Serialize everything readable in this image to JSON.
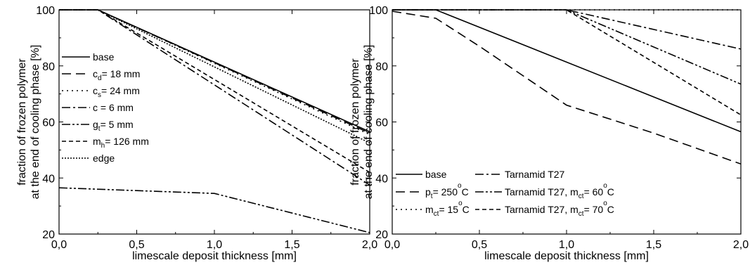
{
  "chart_data": [
    {
      "type": "line",
      "xlabel": "limescale deposit thickness [mm]",
      "ylabel_lines": [
        "fraction of frozen polymer",
        "at the end of cooling phase [%]"
      ],
      "xlim": [
        0,
        2
      ],
      "ylim": [
        20,
        100
      ],
      "xticks": [
        "0,0",
        "0,5",
        "1,0",
        "1,5",
        "2,0"
      ],
      "yticks": [
        "20",
        "40",
        "60",
        "80",
        "100"
      ],
      "legend_placement": "left",
      "series": [
        {
          "name": "base",
          "legend": [
            {
              "t": "base"
            }
          ],
          "dash": "solid",
          "x": [
            0,
            0.25,
            2.0
          ],
          "y": [
            100,
            100,
            56.5
          ]
        },
        {
          "name": "c_d = 18 mm",
          "legend": [
            {
              "t": "c"
            },
            {
              "t": "d",
              "sub": true
            },
            {
              "t": "= 18 mm"
            }
          ],
          "dash": "dash",
          "x": [
            0,
            0.25,
            2.0
          ],
          "y": [
            100,
            100,
            56.0
          ]
        },
        {
          "name": "c_s = 24 mm",
          "legend": [
            {
              "t": "c"
            },
            {
              "t": "s",
              "sub": true
            },
            {
              "t": "= 24 mm"
            }
          ],
          "dash": "dot",
          "x": [
            0,
            0.25,
            2.0
          ],
          "y": [
            100,
            100,
            55.5
          ]
        },
        {
          "name": "c = 6 mm",
          "legend": [
            {
              "t": "c = 6 mm"
            }
          ],
          "dash": "dashdot",
          "x": [
            0,
            0.25,
            2.0
          ],
          "y": [
            100,
            100,
            37.5
          ]
        },
        {
          "name": "g_t = 5 mm",
          "legend": [
            {
              "t": "g"
            },
            {
              "t": "t",
              "sub": true
            },
            {
              "t": "= 5 mm"
            }
          ],
          "dash": "dashdotdot",
          "x": [
            0,
            1.0,
            2.0
          ],
          "y": [
            36.5,
            34.5,
            20.5
          ]
        },
        {
          "name": "m_h = 126 mm",
          "legend": [
            {
              "t": "m"
            },
            {
              "t": "h",
              "sub": true
            },
            {
              "t": "= 126 mm"
            }
          ],
          "dash": "shortdash",
          "x": [
            0,
            0.25,
            2.0
          ],
          "y": [
            100,
            100,
            42.0
          ]
        },
        {
          "name": "edge",
          "legend": [
            {
              "t": "edge"
            }
          ],
          "dash": "densedot",
          "x": [
            0,
            0.25,
            2.0
          ],
          "y": [
            100,
            100,
            52.5
          ]
        }
      ]
    },
    {
      "type": "line",
      "xlabel": "limescale deposit thickness [mm]",
      "ylabel_lines": [
        "fraction of frozen polymer",
        "at the end of cooling phase [%]"
      ],
      "xlim": [
        0,
        2
      ],
      "ylim": [
        20,
        100
      ],
      "xticks": [
        "0,0",
        "0,5",
        "1,0",
        "1,5",
        "2,0"
      ],
      "yticks": [
        "20",
        "40",
        "60",
        "80",
        "100"
      ],
      "legend_placement": "bottom",
      "series": [
        {
          "name": "base",
          "legend": [
            {
              "t": "base"
            }
          ],
          "dash": "solid",
          "x": [
            0,
            0.25,
            2.0
          ],
          "y": [
            100,
            100,
            56.5
          ]
        },
        {
          "name": "p_t = 250°C",
          "legend": [
            {
              "t": "p"
            },
            {
              "t": "t",
              "sub": true
            },
            {
              "t": "= 250"
            },
            {
              "t": "o",
              "sup": true
            },
            {
              "t": "C"
            }
          ],
          "dash": "dash",
          "x": [
            0,
            0.25,
            0.5,
            1.0,
            1.5,
            2.0
          ],
          "y": [
            99.5,
            97,
            87,
            66,
            56,
            45
          ]
        },
        {
          "name": "m_ct = 15°C",
          "legend": [
            {
              "t": "m"
            },
            {
              "t": "ct",
              "sub": true
            },
            {
              "t": "= 15"
            },
            {
              "t": "o",
              "sup": true
            },
            {
              "t": "C"
            }
          ],
          "dash": "dot",
          "x": [
            0,
            2.0
          ],
          "y": [
            100,
            100
          ]
        },
        {
          "name": "Tarnamid T27",
          "legend": [
            {
              "t": "Tarnamid T27"
            }
          ],
          "dash": "dashdot",
          "x": [
            0,
            1.0,
            2.0
          ],
          "y": [
            100,
            100,
            86
          ]
        },
        {
          "name": "Tarnamid T27, m_ct = 60°C",
          "legend": [
            {
              "t": "Tarnamid T27, m"
            },
            {
              "t": "ct",
              "sub": true
            },
            {
              "t": "= 60"
            },
            {
              "t": "o",
              "sup": true
            },
            {
              "t": "C"
            }
          ],
          "dash": "dashdotdot",
          "x": [
            0,
            1.0,
            2.0
          ],
          "y": [
            100,
            100,
            73.5
          ]
        },
        {
          "name": "Tarnamid T27, m_ct = 70°C",
          "legend": [
            {
              "t": "Tarnamid T27, m"
            },
            {
              "t": "ct",
              "sub": true
            },
            {
              "t": "= 70"
            },
            {
              "t": "o",
              "sup": true
            },
            {
              "t": "C"
            }
          ],
          "dash": "shortdash",
          "x": [
            0,
            1.0,
            2.0
          ],
          "y": [
            100,
            100,
            62.5
          ]
        }
      ]
    }
  ]
}
